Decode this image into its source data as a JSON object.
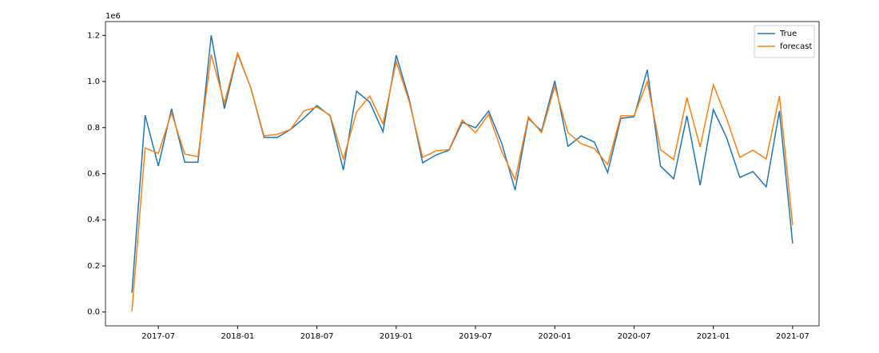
{
  "chart_data": {
    "type": "line",
    "y_offset_label": "1e6",
    "x": [
      "2017-05",
      "2017-06",
      "2017-07",
      "2017-08",
      "2017-09",
      "2017-10",
      "2017-11",
      "2017-12",
      "2018-01",
      "2018-02",
      "2018-03",
      "2018-04",
      "2018-05",
      "2018-06",
      "2018-07",
      "2018-08",
      "2018-09",
      "2018-10",
      "2018-11",
      "2018-12",
      "2019-01",
      "2019-02",
      "2019-03",
      "2019-04",
      "2019-05",
      "2019-06",
      "2019-07",
      "2019-08",
      "2019-09",
      "2019-10",
      "2019-11",
      "2019-12",
      "2020-01",
      "2020-02",
      "2020-03",
      "2020-04",
      "2020-05",
      "2020-06",
      "2020-07",
      "2020-08",
      "2020-09",
      "2020-10",
      "2020-11",
      "2020-12",
      "2021-01",
      "2021-02",
      "2021-03",
      "2021-04",
      "2021-05",
      "2021-06",
      "2021-07"
    ],
    "series": [
      {
        "name": "True",
        "color": "#1f77b4",
        "values": [
          83000,
          854000,
          633000,
          882000,
          650000,
          650000,
          1200000,
          882000,
          1120000,
          972000,
          757000,
          757000,
          792000,
          840000,
          896000,
          851000,
          616000,
          958000,
          910000,
          782000,
          1114000,
          920000,
          647000,
          681000,
          702000,
          823000,
          799000,
          872000,
          730000,
          529000,
          840000,
          785000,
          1003000,
          719000,
          764000,
          737000,
          605000,
          840000,
          847000,
          1051000,
          633000,
          578000,
          851000,
          550000,
          878000,
          757000,
          584000,
          609000,
          543000,
          872000,
          297000
        ]
      },
      {
        "name": "forecast",
        "color": "#ff7f0e",
        "values": [
          3000,
          712000,
          688000,
          864000,
          685000,
          674000,
          1117000,
          906000,
          1124000,
          972000,
          764000,
          771000,
          792000,
          872000,
          889000,
          854000,
          664000,
          868000,
          937000,
          816000,
          1086000,
          910000,
          671000,
          699000,
          705000,
          833000,
          778000,
          858000,
          695000,
          574000,
          847000,
          778000,
          979000,
          778000,
          730000,
          709000,
          640000,
          851000,
          851000,
          1000000,
          705000,
          661000,
          930000,
          716000,
          986000,
          840000,
          671000,
          702000,
          664000,
          937000,
          377000
        ]
      }
    ],
    "xlim": [
      "2017-03",
      "2021-09"
    ],
    "xticks": [
      "2017-07",
      "2018-01",
      "2018-07",
      "2019-01",
      "2019-07",
      "2020-01",
      "2020-07",
      "2021-01",
      "2021-07"
    ],
    "ylim": [
      -60000,
      1260000
    ],
    "yticks": [
      {
        "value": 0,
        "label": "0.0"
      },
      {
        "value": 200000,
        "label": "0.2"
      },
      {
        "value": 400000,
        "label": "0.4"
      },
      {
        "value": 600000,
        "label": "0.6"
      },
      {
        "value": 800000,
        "label": "0.8"
      },
      {
        "value": 1000000,
        "label": "1.0"
      },
      {
        "value": 1200000,
        "label": "1.2"
      }
    ],
    "legend": "upper right"
  }
}
